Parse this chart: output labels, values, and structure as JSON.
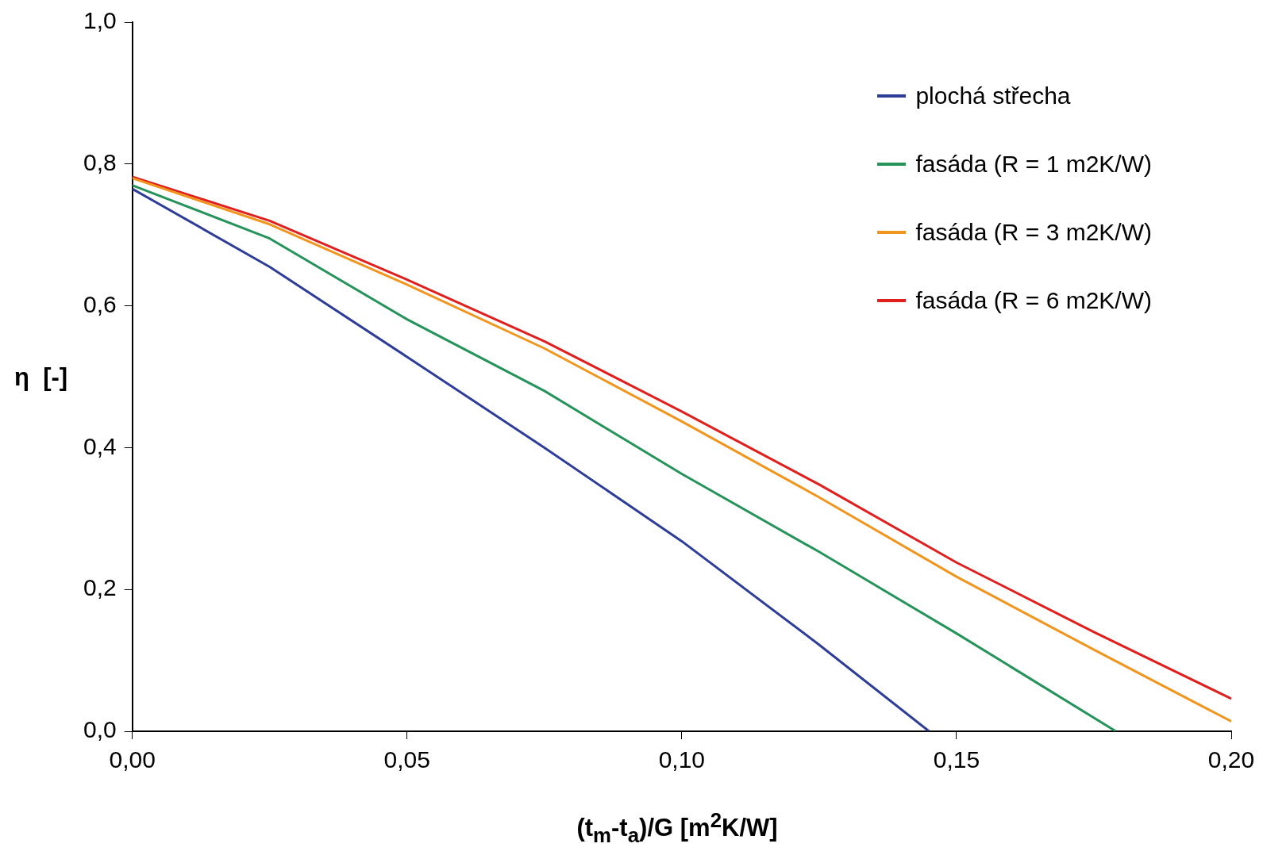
{
  "chart_data": {
    "type": "line",
    "xlabel": "(t$_{m}$-t$_{a}$)/G  [m$^{2}$K/W]",
    "ylabel": "η  [-]",
    "series": [
      {
        "name": "plochá střecha",
        "color": "#2e3d98",
        "x": [
          0,
          0.025,
          0.05,
          0.075,
          0.1,
          0.125,
          0.145
        ],
        "values": [
          0.765,
          0.655,
          0.528,
          0.4,
          0.268,
          0.122,
          0
        ]
      },
      {
        "name": "fasáda (R = 1 m2K/W)",
        "color": "#25935a",
        "x": [
          0,
          0.025,
          0.05,
          0.075,
          0.1,
          0.125,
          0.15,
          0.179
        ],
        "values": [
          0.77,
          0.695,
          0.581,
          0.48,
          0.363,
          0.253,
          0.138,
          0
        ]
      },
      {
        "name": "fasáda (R = 3 m2K/W)",
        "color": "#f0961e",
        "x": [
          0,
          0.025,
          0.05,
          0.075,
          0.1,
          0.125,
          0.15,
          0.175,
          0.2
        ],
        "values": [
          0.78,
          0.715,
          0.63,
          0.54,
          0.437,
          0.33,
          0.218,
          0.115,
          0.014
        ]
      },
      {
        "name": "fasáda (R = 6 m2K/W)",
        "color": "#e0201e",
        "x": [
          0,
          0.025,
          0.05,
          0.075,
          0.1,
          0.125,
          0.15,
          0.175,
          0.2
        ],
        "values": [
          0.782,
          0.72,
          0.637,
          0.55,
          0.451,
          0.348,
          0.238,
          0.14,
          0.046
        ]
      }
    ],
    "xlim": [
      0,
      0.2
    ],
    "xticks": [
      {
        "value": 0,
        "label": "0,00"
      },
      {
        "value": 0.05,
        "label": "0,05"
      },
      {
        "value": 0.1,
        "label": "0,10"
      },
      {
        "value": 0.15,
        "label": "0,15"
      },
      {
        "value": 0.2,
        "label": "0,20"
      }
    ],
    "ylim": [
      0,
      1
    ],
    "yticks": [
      {
        "value": 0,
        "label": "0,0"
      },
      {
        "value": 0.2,
        "label": "0,2"
      },
      {
        "value": 0.4,
        "label": "0,4"
      },
      {
        "value": 0.6,
        "label": "0,6"
      },
      {
        "value": 0.8,
        "label": "0,8"
      },
      {
        "value": 1,
        "label": "1,0"
      }
    ],
    "legend": "top right",
    "marker": "none",
    "line_style": "solid"
  }
}
